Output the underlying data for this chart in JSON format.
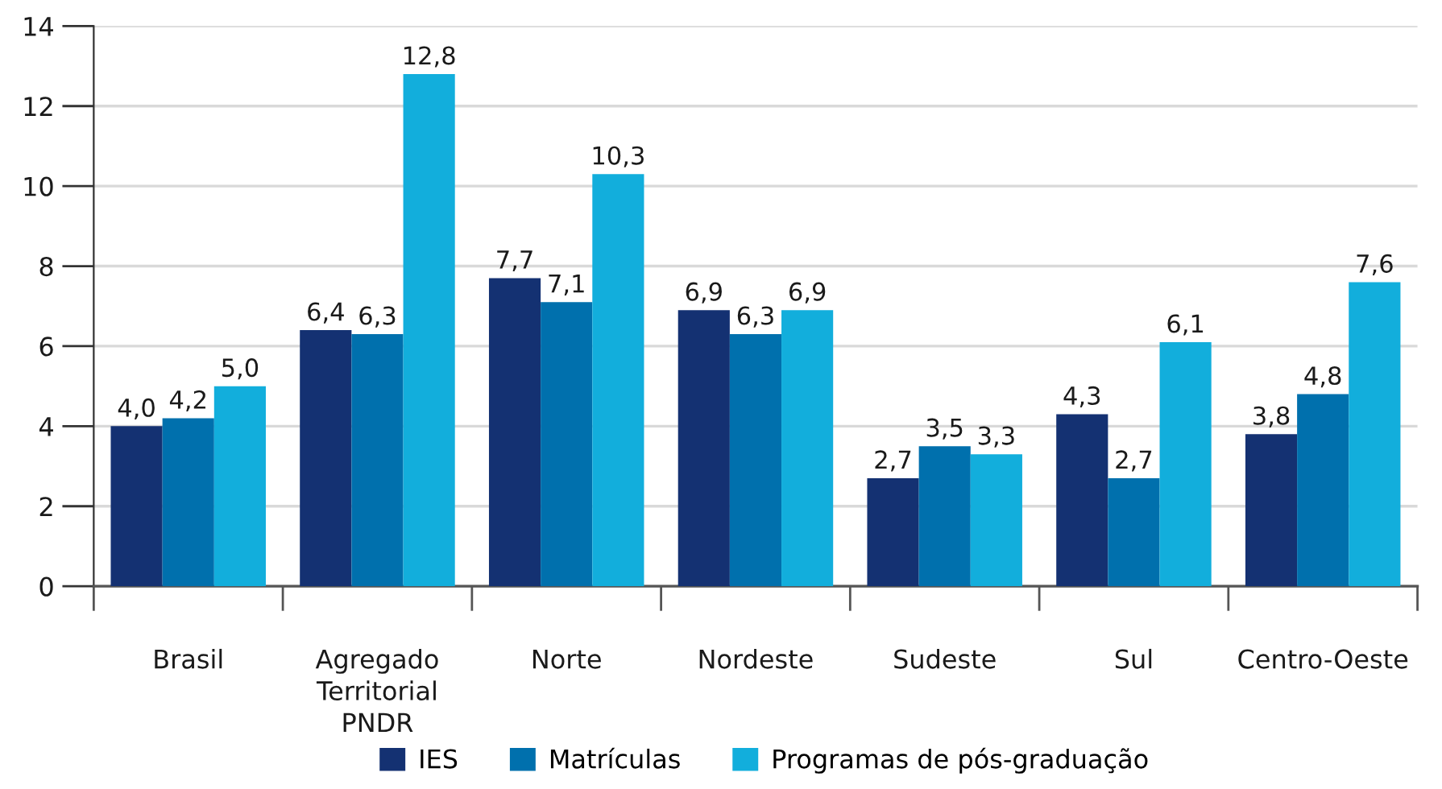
{
  "chart_data": {
    "type": "bar",
    "categories": [
      "Brasil",
      "Agregado\nTerritorial\nPNDR",
      "Norte",
      "Nordeste",
      "Sudeste",
      "Sul",
      "Centro-Oeste"
    ],
    "series": [
      {
        "name": "IES",
        "color": "#143172",
        "values": [
          4.0,
          6.4,
          7.7,
          6.9,
          2.7,
          4.3,
          3.8
        ],
        "value_labels": [
          "4,0",
          "6,4",
          "7,7",
          "6,9",
          "2,7",
          "4,3",
          "3,8"
        ]
      },
      {
        "name": "Matrículas",
        "color": "#0070ad",
        "values": [
          4.2,
          6.3,
          7.1,
          6.3,
          3.5,
          2.7,
          4.8
        ],
        "value_labels": [
          "4,2",
          "6,3",
          "7,1",
          "6,3",
          "3,5",
          "2,7",
          "4,8"
        ]
      },
      {
        "name": "Programas de pós-graduação",
        "color": "#12aedc",
        "values": [
          5.0,
          12.8,
          10.3,
          6.9,
          3.3,
          6.1,
          7.6
        ],
        "value_labels": [
          "5,0",
          "12,8",
          "10,3",
          "6,9",
          "3,3",
          "6,1",
          "7,6"
        ]
      }
    ],
    "ylim": [
      0,
      14
    ],
    "yticks": [
      0,
      2,
      4,
      6,
      8,
      10,
      12,
      14
    ],
    "grid": "y",
    "legend": "bottom"
  }
}
